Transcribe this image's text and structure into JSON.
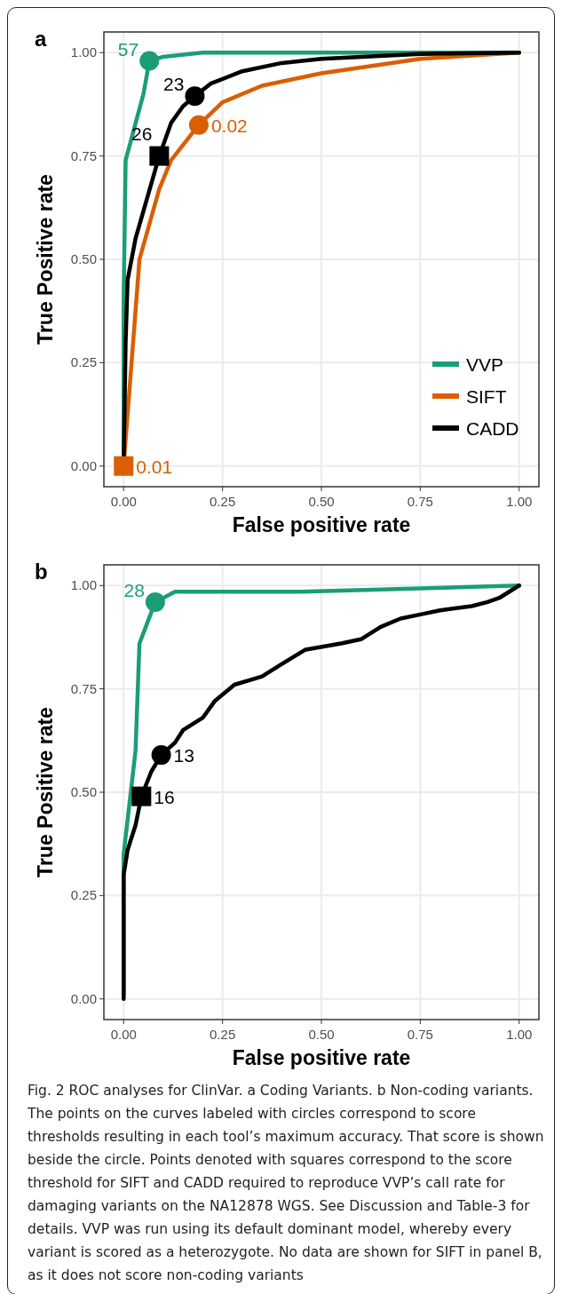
{
  "chart_data": [
    {
      "type": "line",
      "title": "a",
      "xlabel": "False positive rate",
      "ylabel": "True Positive rate",
      "xlim": [
        -0.05,
        1.05
      ],
      "ylim": [
        -0.05,
        1.05
      ],
      "xticks": [
        {
          "value": 0,
          "label": "0.00"
        },
        {
          "value": 0.25,
          "label": "0.25"
        },
        {
          "value": 0.5,
          "label": "0.50"
        },
        {
          "value": 0.75,
          "label": "0.75"
        },
        {
          "value": 1,
          "label": "1.00"
        }
      ],
      "yticks": [
        {
          "value": 0,
          "label": "0.00"
        },
        {
          "value": 0.25,
          "label": "0.25"
        },
        {
          "value": 0.5,
          "label": "0.50"
        },
        {
          "value": 0.75,
          "label": "0.75"
        },
        {
          "value": 1,
          "label": "1.00"
        }
      ],
      "grid": true,
      "legend": "bottom right",
      "marker": "none",
      "line_style": "solid",
      "series": [
        {
          "name": "VVP",
          "color": "#1b9e77",
          "x": [
            0,
            0,
            0.005,
            0.05,
            0.065,
            0.1,
            0.2,
            1
          ],
          "values": [
            0,
            0.4,
            0.74,
            0.9,
            0.98,
            0.99,
            1,
            1
          ]
        },
        {
          "name": "SIFT",
          "color": "#d95f02",
          "x": [
            0,
            0.04,
            0.09,
            0.12,
            0.19,
            0.25,
            0.35,
            0.5,
            0.75,
            1
          ],
          "values": [
            0,
            0.5,
            0.67,
            0.74,
            0.825,
            0.88,
            0.92,
            0.95,
            0.985,
            1
          ]
        },
        {
          "name": "CADD",
          "color": "#000000",
          "x": [
            0,
            0.005,
            0.01,
            0.03,
            0.06,
            0.09,
            0.12,
            0.15,
            0.18,
            0.22,
            0.3,
            0.4,
            0.5,
            0.75,
            1
          ],
          "values": [
            0,
            0.3,
            0.45,
            0.55,
            0.65,
            0.75,
            0.83,
            0.87,
            0.895,
            0.925,
            0.955,
            0.975,
            0.985,
            0.997,
            1
          ]
        },
        {
          "type": "scatter",
          "marker": "circle",
          "color": "#1b9e77",
          "x": [
            0.065
          ],
          "values": [
            0.98
          ]
        },
        {
          "type": "scatter",
          "marker": "circle",
          "color": "#d95f02",
          "x": [
            0.19
          ],
          "values": [
            0.825
          ]
        },
        {
          "type": "scatter",
          "marker": "circle",
          "color": "#000000",
          "x": [
            0.18
          ],
          "values": [
            0.895
          ]
        },
        {
          "type": "scatter",
          "marker": "square",
          "color": "#d95f02",
          "x": [
            0
          ],
          "values": [
            0
          ]
        },
        {
          "type": "scatter",
          "marker": "square",
          "color": "#000000",
          "x": [
            0.09
          ],
          "values": [
            0.75
          ]
        }
      ],
      "annotations": [
        {
          "text": "57",
          "x": 0.065,
          "y": 0.98
        },
        {
          "text": "0.02",
          "x": 0.19,
          "y": 0.825
        },
        {
          "text": "23",
          "x": 0.18,
          "y": 0.895
        },
        {
          "text": "0.01",
          "x": 0,
          "y": 0
        },
        {
          "text": "26",
          "x": 0.09,
          "y": 0.75
        }
      ]
    },
    {
      "type": "line",
      "title": "b",
      "xlabel": "False positive rate",
      "ylabel": "True Positive rate",
      "xlim": [
        -0.05,
        1.05
      ],
      "ylim": [
        -0.05,
        1.05
      ],
      "xticks": [
        {
          "value": 0,
          "label": "0.00"
        },
        {
          "value": 0.25,
          "label": "0.25"
        },
        {
          "value": 0.5,
          "label": "0.50"
        },
        {
          "value": 0.75,
          "label": "0.75"
        },
        {
          "value": 1,
          "label": "1.00"
        }
      ],
      "yticks": [
        {
          "value": 0,
          "label": "0.00"
        },
        {
          "value": 0.25,
          "label": "0.25"
        },
        {
          "value": 0.5,
          "label": "0.50"
        },
        {
          "value": 0.75,
          "label": "0.75"
        },
        {
          "value": 1,
          "label": "1.00"
        }
      ],
      "grid": true,
      "marker": "none",
      "line_style": "solid",
      "series": [
        {
          "color": "#1b9e77",
          "x": [
            0,
            0,
            0.03,
            0.04,
            0.06,
            0.08,
            0.13,
            0.45,
            1
          ],
          "values": [
            0.01,
            0.35,
            0.6,
            0.86,
            0.91,
            0.96,
            0.985,
            0.985,
            1
          ]
        },
        {
          "color": "#000000",
          "x": [
            0,
            0,
            0.01,
            0.03,
            0.045,
            0.07,
            0.095,
            0.13,
            0.15,
            0.2,
            0.23,
            0.28,
            0.35,
            0.4,
            0.46,
            0.55,
            0.6,
            0.65,
            0.7,
            0.75,
            0.8,
            0.88,
            0.92,
            0.95,
            1
          ],
          "values": [
            0,
            0.3,
            0.36,
            0.42,
            0.49,
            0.55,
            0.59,
            0.62,
            0.65,
            0.68,
            0.72,
            0.76,
            0.78,
            0.81,
            0.845,
            0.86,
            0.87,
            0.9,
            0.92,
            0.93,
            0.94,
            0.95,
            0.96,
            0.97,
            1
          ]
        },
        {
          "type": "scatter",
          "marker": "circle",
          "color": "#1b9e77",
          "x": [
            0.08
          ],
          "values": [
            0.96
          ]
        },
        {
          "type": "scatter",
          "marker": "circle",
          "color": "#000000",
          "x": [
            0.095
          ],
          "values": [
            0.59
          ]
        },
        {
          "type": "scatter",
          "marker": "square",
          "color": "#000000",
          "x": [
            0.045
          ],
          "values": [
            0.49
          ]
        }
      ],
      "annotations": [
        {
          "text": "28",
          "x": 0.08,
          "y": 0.96
        },
        {
          "text": "13",
          "x": 0.095,
          "y": 0.59
        },
        {
          "text": "16",
          "x": 0.045,
          "y": 0.49
        },
        "Fig. 2 ROC analyses for ClinVar. a Coding Variants. b Non-coding variants. The points on the curves labeled with circles correspond to score thresholds resulting in each tool’s maximum accuracy. That score is shown beside the circle. Points denoted with squares correspond to the score threshold for SIFT and CADD required to reproduce VVP’s call rate for damaging variants on the NA12878 WGS. See Discussion and Table-3 for details. VVP was run using its default dominant model, whereby every variant is scored as a heterozygote. No data are shown for SIFT in panel B, as it does not score non-coding variants"
      ]
    }
  ]
}
